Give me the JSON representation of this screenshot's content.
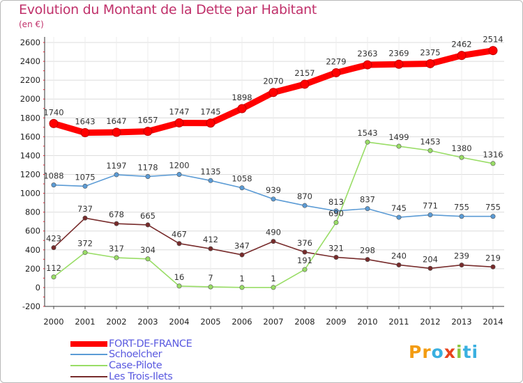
{
  "header": {
    "title": "Evolution du Montant de la Dette par Habitant",
    "subtitle": "(en €)"
  },
  "chart_data": {
    "type": "line",
    "title": "Evolution du Montant de la Dette par Habitant",
    "ylabel": "(en €)",
    "xlabel": "",
    "x": [
      2000,
      2001,
      2002,
      2003,
      2004,
      2005,
      2006,
      2007,
      2008,
      2009,
      2010,
      2011,
      2012,
      2013,
      2014
    ],
    "x_tick_labels": [
      "2000",
      "2001",
      "2002",
      "2003",
      "2004",
      "2005",
      "2006",
      "2007",
      "2008",
      "2009",
      "2010",
      "2011",
      "2012",
      "2013",
      "2014"
    ],
    "ylim": [
      -200,
      2600
    ],
    "y_ticks": [
      -200,
      0,
      200,
      400,
      600,
      800,
      1000,
      1200,
      1400,
      1600,
      1800,
      2000,
      2200,
      2400,
      2600
    ],
    "y_tick_labels": [
      "-200",
      "0",
      "200",
      "400",
      "600",
      "800",
      "1000",
      "1200",
      "1400",
      "1600",
      "1800",
      "2000",
      "2200",
      "2400",
      "2600"
    ],
    "grid": true,
    "legend_position": "bottom-left",
    "series": [
      {
        "name": "FORT-DE-FRANCE",
        "color": "#ff0000",
        "emphasis": "thick",
        "values": [
          1740,
          1643,
          1647,
          1657,
          1747,
          1745,
          1898,
          2070,
          2157,
          2279,
          2363,
          2369,
          2375,
          2462,
          2514
        ],
        "labels": [
          "1740",
          "1643",
          "1647",
          "1657",
          "1747",
          "1745",
          "1898",
          "2070",
          "2157",
          "2279",
          "2363",
          "2369",
          "2375",
          "2462",
          "2514"
        ]
      },
      {
        "name": "Schoelcher",
        "color": "#5b9bd5",
        "values": [
          1088,
          1075,
          1197,
          1178,
          1200,
          1135,
          1058,
          939,
          870,
          813,
          837,
          745,
          771,
          755,
          755
        ],
        "labels": [
          "1088",
          "1075",
          "1197",
          "1178",
          "1200",
          "1135",
          "1058",
          "939",
          "870",
          "813",
          "837",
          "745",
          "771",
          "755",
          "755"
        ]
      },
      {
        "name": "Case-Pilote",
        "color": "#99dd66",
        "values": [
          112,
          372,
          317,
          304,
          16,
          7,
          1,
          1,
          191,
          690,
          1543,
          1499,
          1453,
          1380,
          1316
        ],
        "labels": [
          "112",
          "372",
          "317",
          "304",
          "16",
          "7",
          "1",
          "1",
          "191",
          "690",
          "1543",
          "1499",
          "1453",
          "1380",
          "1316"
        ]
      },
      {
        "name": "Les Trois-Ilets",
        "color": "#772b2b",
        "values": [
          423,
          737,
          678,
          665,
          467,
          412,
          347,
          490,
          376,
          321,
          298,
          240,
          204,
          239,
          219
        ],
        "labels": [
          "423",
          "737",
          "678",
          "665",
          "467",
          "412",
          "347",
          "490",
          "376",
          "321",
          "298",
          "240",
          "204",
          "239",
          "219"
        ]
      }
    ]
  },
  "logo": {
    "text_parts": [
      "Pr",
      "o",
      "x",
      "i",
      "ti"
    ],
    "colors": [
      "#f39c12",
      "#3ab0e0",
      "#e8431c",
      "#8cc63f",
      "#3ab0e0"
    ]
  }
}
